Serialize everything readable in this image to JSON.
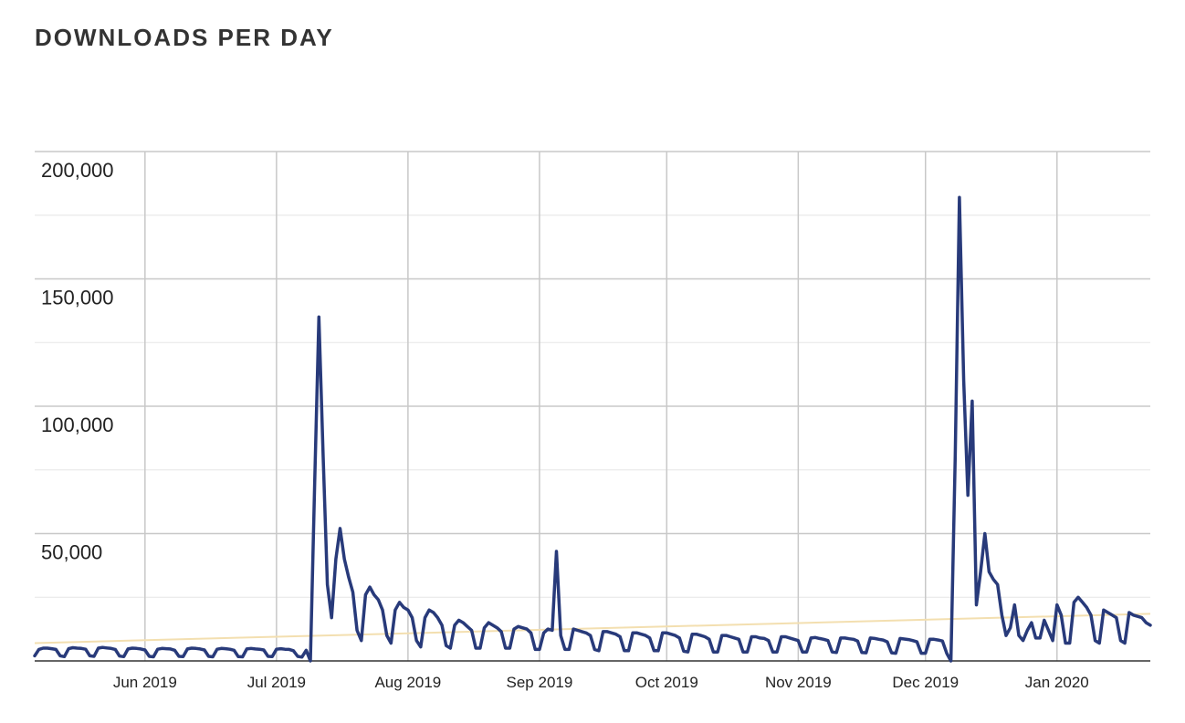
{
  "chart_data": {
    "type": "line",
    "title": "DOWNLOADS PER DAY",
    "categories": [
      null,
      null,
      null,
      null,
      null,
      null,
      null,
      null,
      null,
      null,
      null,
      null,
      null,
      null,
      null,
      null,
      null,
      null,
      null,
      null,
      null,
      null,
      null,
      null,
      null,
      null,
      "Jun 2019",
      null,
      null,
      null,
      null,
      null,
      null,
      null,
      null,
      null,
      null,
      null,
      null,
      null,
      null,
      null,
      null,
      null,
      null,
      null,
      null,
      null,
      null,
      null,
      null,
      null,
      null,
      null,
      null,
      null,
      null,
      "Jul 2019",
      null,
      null,
      null,
      null,
      null,
      null,
      null,
      null,
      null,
      null,
      null,
      null,
      null,
      null,
      null,
      null,
      null,
      null,
      null,
      null,
      null,
      null,
      null,
      null,
      null,
      null,
      null,
      null,
      null,
      null,
      "Aug 2019",
      null,
      null,
      null,
      null,
      null,
      null,
      null,
      null,
      null,
      null,
      null,
      null,
      null,
      null,
      null,
      null,
      null,
      null,
      null,
      null,
      null,
      null,
      null,
      null,
      null,
      null,
      null,
      null,
      null,
      null,
      "Sep 2019",
      null,
      null,
      null,
      null,
      null,
      null,
      null,
      null,
      null,
      null,
      null,
      null,
      null,
      null,
      null,
      null,
      null,
      null,
      null,
      null,
      null,
      null,
      null,
      null,
      null,
      null,
      null,
      null,
      null,
      "Oct 2019",
      null,
      null,
      null,
      null,
      null,
      null,
      null,
      null,
      null,
      null,
      null,
      null,
      null,
      null,
      null,
      null,
      null,
      null,
      null,
      null,
      null,
      null,
      null,
      null,
      null,
      null,
      null,
      null,
      null,
      null,
      "Nov 2019",
      null,
      null,
      null,
      null,
      null,
      null,
      null,
      null,
      null,
      null,
      null,
      null,
      null,
      null,
      null,
      null,
      null,
      null,
      null,
      null,
      null,
      null,
      null,
      null,
      null,
      null,
      null,
      null,
      null,
      "Dec 2019",
      null,
      null,
      null,
      null,
      null,
      null,
      null,
      null,
      null,
      null,
      null,
      null,
      null,
      null,
      null,
      null,
      null,
      null,
      null,
      null,
      null,
      null,
      null,
      null,
      null,
      null,
      null,
      null,
      null,
      null,
      "Jan 2020",
      null,
      null,
      null,
      null,
      null,
      null,
      null,
      null,
      null,
      null,
      null,
      null,
      null,
      null,
      null,
      null,
      null,
      null,
      null,
      null,
      null,
      null
    ],
    "series": [
      {
        "name": "Downloads",
        "color": "#283a7a",
        "values": [
          2000,
          4500,
          5000,
          5000,
          4800,
          4500,
          2000,
          1700,
          4800,
          5200,
          5000,
          4900,
          4600,
          2000,
          1800,
          5000,
          5300,
          5100,
          4900,
          4500,
          1900,
          1700,
          4700,
          5000,
          4900,
          4700,
          4300,
          1800,
          1600,
          4600,
          4900,
          4800,
          4700,
          4200,
          1800,
          1700,
          4700,
          5000,
          4900,
          4700,
          4300,
          1800,
          1600,
          4600,
          4900,
          4800,
          4600,
          4200,
          1700,
          1600,
          4700,
          4900,
          4700,
          4600,
          4300,
          1800,
          1700,
          4600,
          4800,
          4600,
          4500,
          4000,
          1800,
          1500,
          4200,
          0,
          70000,
          135000,
          80000,
          30000,
          17000,
          40000,
          52000,
          40000,
          33000,
          27000,
          12000,
          8000,
          26000,
          29000,
          26000,
          24000,
          20000,
          10000,
          7000,
          20000,
          23000,
          21000,
          20000,
          17000,
          8000,
          5500,
          17000,
          20000,
          19000,
          17000,
          14000,
          6000,
          5000,
          14000,
          16000,
          15000,
          13500,
          12000,
          5000,
          5000,
          13000,
          15000,
          14000,
          13000,
          11500,
          5000,
          5000,
          12500,
          13500,
          13000,
          12500,
          11000,
          4500,
          4500,
          11000,
          12500,
          12000,
          43000,
          10000,
          4500,
          4500,
          12500,
          12000,
          11500,
          11000,
          10000,
          4500,
          4000,
          11500,
          11500,
          11000,
          10500,
          9500,
          4000,
          4000,
          11000,
          11000,
          10500,
          10000,
          9000,
          4000,
          4000,
          11000,
          11000,
          10500,
          10000,
          9000,
          3800,
          3500,
          10500,
          10500,
          10000,
          9500,
          8500,
          3500,
          3500,
          10000,
          10000,
          9500,
          9000,
          8500,
          3500,
          3500,
          9500,
          9500,
          9000,
          8800,
          8000,
          3500,
          3500,
          9500,
          9500,
          9000,
          8500,
          8000,
          3500,
          3500,
          9000,
          9200,
          8800,
          8500,
          8000,
          3500,
          3300,
          9000,
          9000,
          8700,
          8500,
          7800,
          3300,
          3200,
          9000,
          8800,
          8500,
          8200,
          7500,
          3200,
          3000,
          8800,
          8600,
          8400,
          8000,
          7500,
          3000,
          3000,
          8500,
          8500,
          8200,
          7800,
          3000,
          0,
          80000,
          182000,
          110000,
          65000,
          102000,
          22000,
          35000,
          50000,
          35000,
          32000,
          30000,
          18000,
          10000,
          13000,
          22000,
          10000,
          8000,
          12000,
          15000,
          9000,
          9000,
          16000,
          12000,
          8000,
          22000,
          18000,
          7000,
          7000,
          23000,
          25000,
          23000,
          21000,
          18000,
          8000,
          7000,
          20000,
          19000,
          18000,
          17000,
          8000,
          7000,
          19000,
          18000,
          17500,
          17000,
          15000,
          14000
        ]
      }
    ],
    "trend": {
      "color": "#f3dfb0",
      "values": [
        7000,
        18500
      ]
    },
    "ylim": [
      0,
      200000
    ],
    "yticks": [
      {
        "value": 50000,
        "label": "50,000"
      },
      {
        "value": 100000,
        "label": "100,000"
      },
      {
        "value": 150000,
        "label": "150,000"
      },
      {
        "value": 200000,
        "label": "200,000"
      }
    ],
    "minor_yticks": [
      25000,
      75000,
      125000,
      175000
    ],
    "grid": true
  }
}
